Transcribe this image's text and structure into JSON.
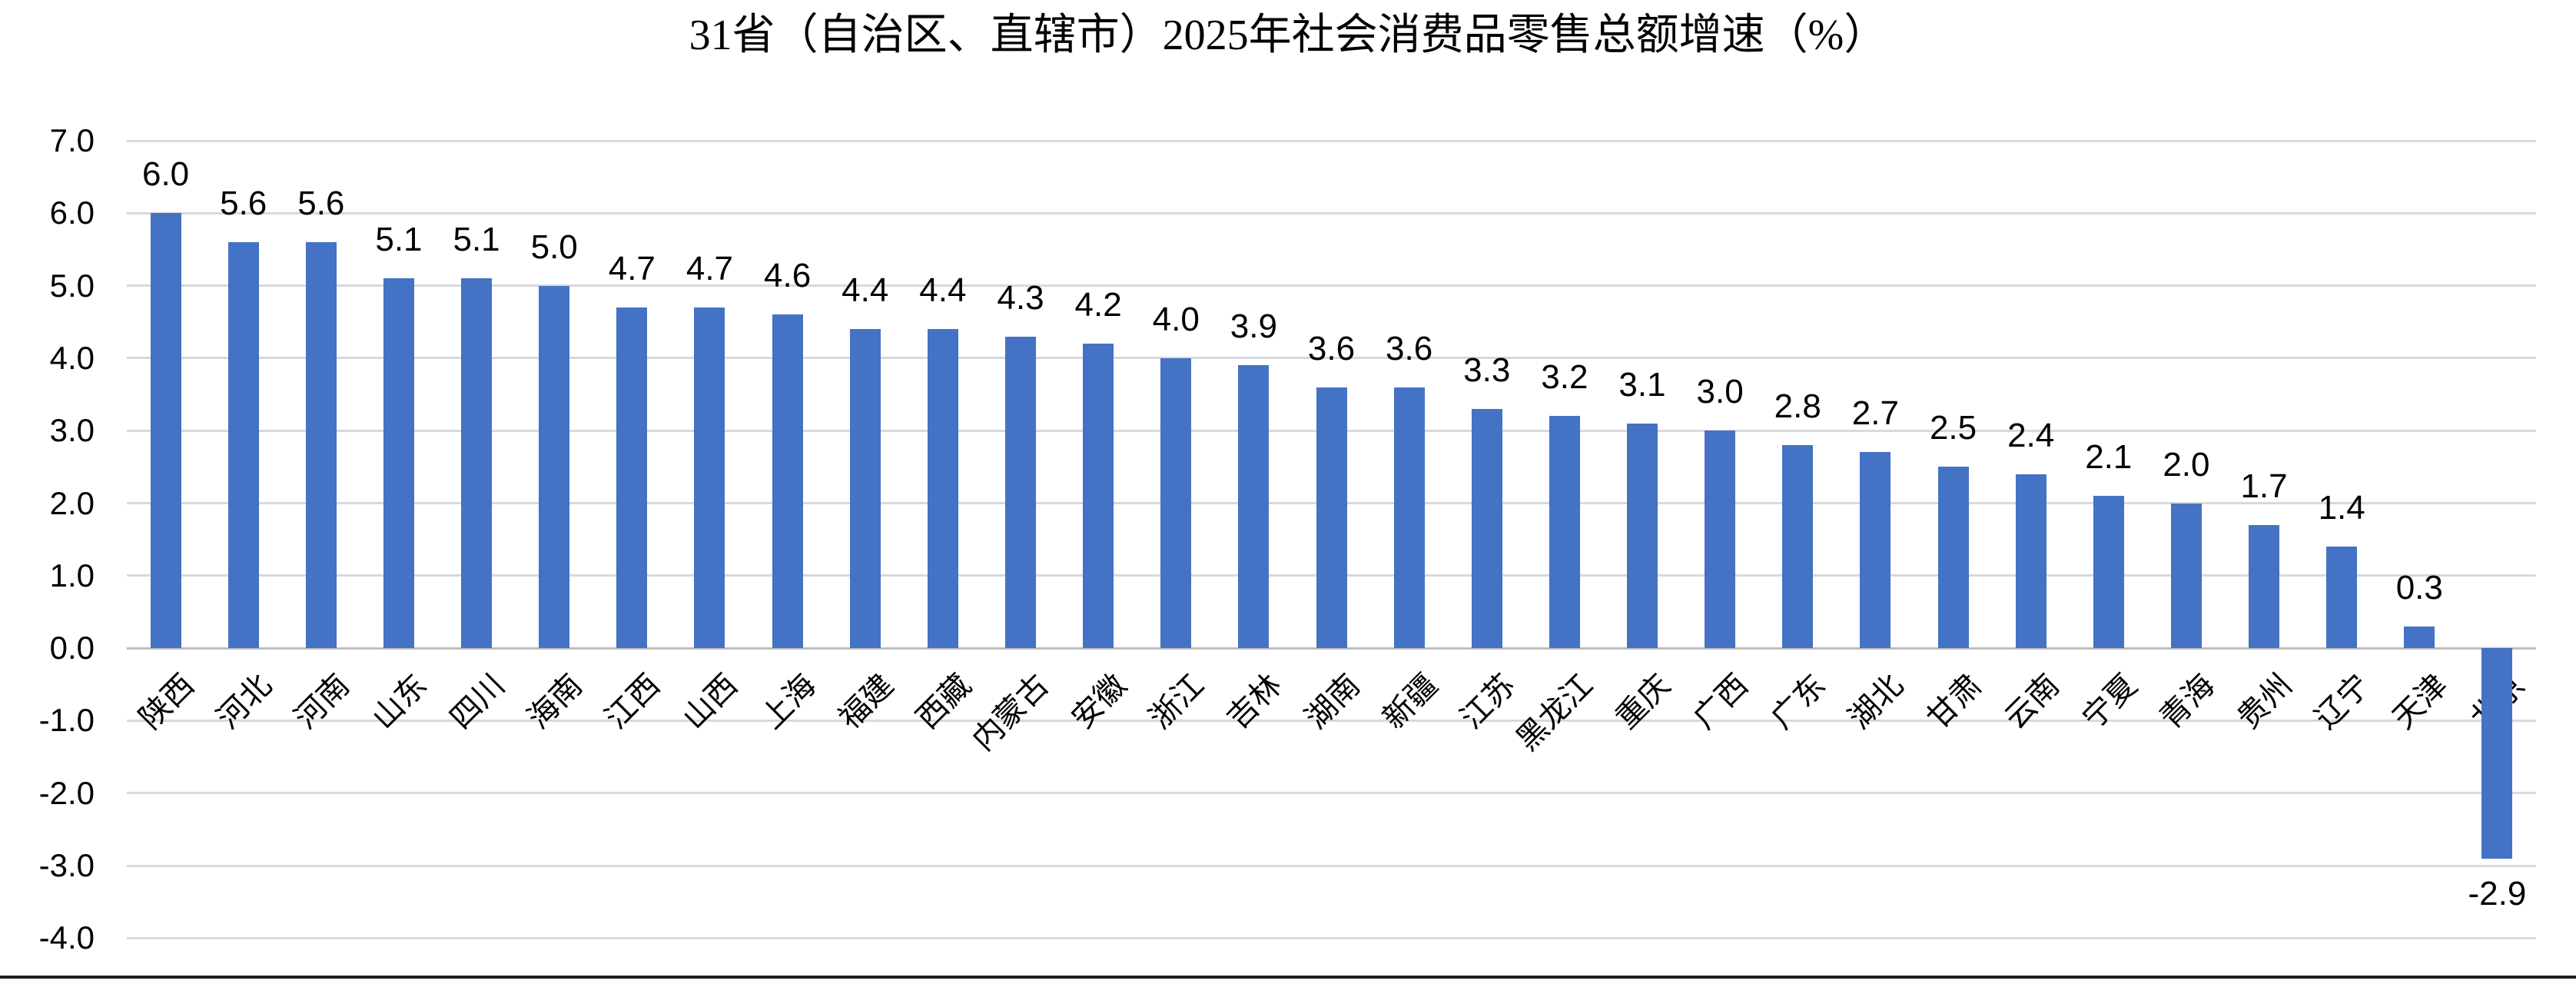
{
  "chart_data": {
    "type": "bar",
    "title": "31省（自治区、直辖市）2025年社会消费品零售总额增速（%）",
    "categories": [
      "陕西",
      "河北",
      "河南",
      "山东",
      "四川",
      "海南",
      "江西",
      "山西",
      "上海",
      "福建",
      "西藏",
      "内蒙古",
      "安徽",
      "浙江",
      "吉林",
      "湖南",
      "新疆",
      "江苏",
      "黑龙江",
      "重庆",
      "广西",
      "广东",
      "湖北",
      "甘肃",
      "云南",
      "宁夏",
      "青海",
      "贵州",
      "辽宁",
      "天津",
      "北京"
    ],
    "values": [
      6.0,
      5.6,
      5.6,
      5.1,
      5.1,
      5.0,
      4.7,
      4.7,
      4.6,
      4.4,
      4.4,
      4.3,
      4.2,
      4.0,
      3.9,
      3.6,
      3.6,
      3.3,
      3.2,
      3.1,
      3.0,
      2.8,
      2.7,
      2.5,
      2.4,
      2.1,
      2.0,
      1.7,
      1.4,
      0.3,
      -2.9
    ],
    "xlabel": "",
    "ylabel": "",
    "ylim": [
      -4.0,
      7.0
    ],
    "ytick_step": 1.0,
    "ytick_labels": [
      "7.0",
      "6.0",
      "5.0",
      "4.0",
      "3.0",
      "2.0",
      "1.0",
      "0.0",
      "-1.0",
      "-2.0",
      "-3.0",
      "-4.0"
    ],
    "grid": true,
    "legend": "none",
    "value_labels": "outside-end",
    "colors": {
      "bar_fill": "#4472C4",
      "gridline": "#D9D9D9",
      "zero_axis_line": "#BFBFBF",
      "text": "#000000",
      "background": "#FFFFFF",
      "bottom_border": "#1F1F1F"
    }
  }
}
